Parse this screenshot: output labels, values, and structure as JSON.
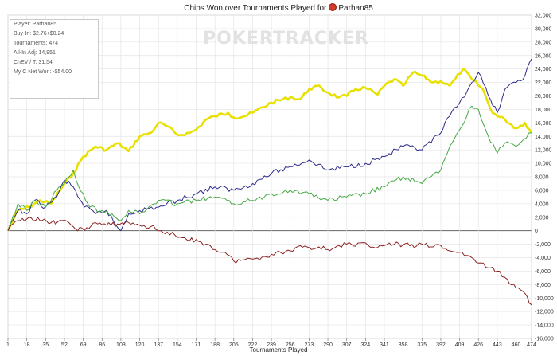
{
  "chart_data": {
    "type": "line",
    "title": "Chips Won over Tournaments Played for",
    "player_name": "Parhan85",
    "xlabel": "Tournaments Played",
    "ylabel": "",
    "xlim": [
      1,
      474
    ],
    "ylim": [
      -16000,
      32000
    ],
    "x_ticks": [
      1,
      18,
      35,
      52,
      69,
      86,
      103,
      120,
      137,
      154,
      171,
      188,
      205,
      222,
      239,
      256,
      273,
      290,
      307,
      324,
      341,
      358,
      375,
      392,
      409,
      426,
      443,
      460,
      474
    ],
    "y_ticks": [
      -16000,
      -14000,
      -12000,
      -10000,
      -8000,
      -6000,
      -4000,
      -2000,
      0,
      2000,
      4000,
      6000,
      8000,
      10000,
      12000,
      14000,
      16000,
      18000,
      20000,
      22000,
      24000,
      26000,
      28000,
      30000,
      32000
    ],
    "y_tick_labels": [
      "-16,000",
      "-14,000",
      "-12,000",
      "-10,000",
      "-8,000",
      "-6,000",
      "-4,000",
      "-2,000",
      "0",
      "2,000",
      "4,000",
      "6,000",
      "8,000",
      "10,000",
      "12,000",
      "14,000",
      "16,000",
      "18,000",
      "20,000",
      "22,000",
      "24,000",
      "26,000",
      "28,000",
      "30,000",
      "32,000"
    ],
    "grid": true,
    "series": [
      {
        "color": "#e8e000",
        "x": [
          1,
          10,
          20,
          30,
          40,
          50,
          60,
          69,
          80,
          90,
          100,
          110,
          120,
          130,
          137,
          145,
          154,
          165,
          171,
          180,
          188,
          200,
          205,
          215,
          222,
          239,
          256,
          265,
          273,
          280,
          290,
          300,
          307,
          315,
          324,
          335,
          341,
          350,
          358,
          367,
          375,
          385,
          392,
          400,
          405,
          412,
          420,
          430,
          437,
          443,
          450,
          460,
          468,
          474
        ],
        "y": [
          0,
          3000,
          3500,
          4500,
          4000,
          6500,
          8500,
          11000,
          12500,
          12000,
          13000,
          11800,
          14000,
          14500,
          16000,
          15500,
          14200,
          14500,
          15000,
          16500,
          17000,
          17500,
          16800,
          17000,
          17500,
          19000,
          19800,
          19500,
          21000,
          21500,
          20500,
          19800,
          20000,
          21000,
          21200,
          20200,
          21500,
          22500,
          21500,
          23500,
          23000,
          22000,
          22200,
          21500,
          22500,
          24000,
          22500,
          21000,
          18000,
          17000,
          16500,
          15200,
          16000,
          14500
        ]
      },
      {
        "color": "#2b2b8c",
        "x": [
          1,
          10,
          18,
          25,
          35,
          45,
          52,
          60,
          70,
          80,
          90,
          100,
          103,
          110,
          120,
          137,
          154,
          171,
          188,
          205,
          222,
          239,
          256,
          273,
          290,
          307,
          324,
          341,
          358,
          375,
          392,
          400,
          409,
          420,
          426,
          435,
          443,
          450,
          460,
          468,
          474
        ],
        "y": [
          0,
          3000,
          2500,
          4500,
          3500,
          5000,
          7500,
          6500,
          3500,
          2500,
          3000,
          500,
          0,
          2500,
          3000,
          3500,
          4500,
          5500,
          6500,
          6000,
          7000,
          8500,
          9500,
          10500,
          9000,
          9500,
          10000,
          11000,
          12500,
          12000,
          14500,
          17000,
          19000,
          22000,
          23500,
          20000,
          17500,
          21000,
          22000,
          23000,
          25500
        ]
      },
      {
        "color": "#44a844",
        "x": [
          1,
          10,
          18,
          25,
          35,
          45,
          52,
          60,
          65,
          75,
          86,
          95,
          103,
          110,
          120,
          137,
          154,
          171,
          188,
          205,
          222,
          239,
          256,
          273,
          290,
          307,
          324,
          341,
          358,
          375,
          392,
          400,
          409,
          420,
          426,
          435,
          443,
          450,
          460,
          474
        ],
        "y": [
          0,
          4000,
          3000,
          4500,
          3500,
          6000,
          7000,
          9000,
          6500,
          3500,
          3000,
          2500,
          1500,
          3000,
          2500,
          4500,
          4000,
          4500,
          5000,
          4000,
          4500,
          5500,
          6000,
          5500,
          4500,
          5000,
          5500,
          6500,
          8000,
          7000,
          9000,
          12500,
          15000,
          18500,
          18000,
          14000,
          11500,
          13000,
          12500,
          14500
        ]
      },
      {
        "color": "#8b2222",
        "x": [
          1,
          10,
          20,
          30,
          40,
          50,
          60,
          70,
          80,
          90,
          100,
          110,
          120,
          130,
          137,
          145,
          154,
          165,
          171,
          180,
          188,
          197,
          205,
          215,
          222,
          239,
          256,
          265,
          273,
          282,
          290,
          300,
          307,
          315,
          324,
          335,
          341,
          350,
          358,
          370,
          375,
          385,
          392,
          400,
          409,
          420,
          426,
          435,
          443,
          452,
          460,
          468,
          474
        ],
        "y": [
          0,
          1500,
          2000,
          1500,
          1200,
          1500,
          600,
          0,
          1200,
          800,
          1000,
          1200,
          800,
          600,
          0,
          -200,
          -1000,
          -1500,
          -1300,
          -2000,
          -2800,
          -3200,
          -4500,
          -4300,
          -4200,
          -3500,
          -3000,
          -2200,
          -2500,
          -2400,
          -2800,
          -2200,
          -2000,
          -2300,
          -1800,
          -2500,
          -2200,
          -2000,
          -2100,
          -2300,
          -2000,
          -2400,
          -2200,
          -3000,
          -3200,
          -4000,
          -4800,
          -5500,
          -6000,
          -7200,
          -8500,
          -9300,
          -11000
        ]
      }
    ]
  },
  "info_box": {
    "player": "Player: Parhan85",
    "buyin": "Buy-In: $2.76+$0.24",
    "tournaments": "Tournaments: 474",
    "allin": "All-In Adj: 14,951",
    "chev": "ChEV / T: 31.54",
    "net_won": "My C Net Won: -$54.00"
  },
  "watermark": "POKERTRACKER"
}
